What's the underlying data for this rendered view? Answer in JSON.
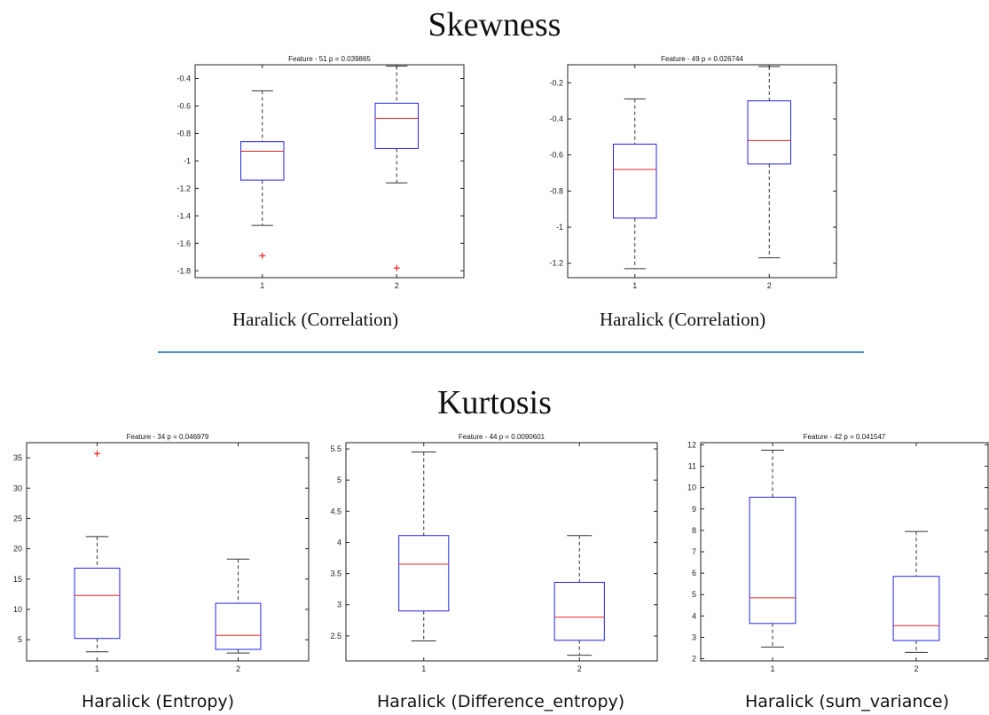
{
  "sections": {
    "skewness_title": "Skewness",
    "kurtosis_title": "Kurtosis"
  },
  "colors": {
    "box": "#2222ee",
    "median": "#ee2222",
    "outlier": "#ee2222",
    "whisker": "#333333",
    "divider": "#4a90d9"
  },
  "chart_data": [
    {
      "type": "boxplot",
      "title": "Feature - 51 p = 0.039865",
      "caption": "Haralick (Correlation)",
      "categories": [
        "1",
        "2"
      ],
      "ylim": [
        -1.85,
        -0.3
      ],
      "yticks": [
        -0.4,
        -0.6,
        -0.8,
        -1,
        -1.2,
        -1.4,
        -1.6,
        -1.8
      ],
      "boxes": [
        {
          "category": "1",
          "whisker_low": -1.47,
          "q1": -1.14,
          "median": -0.93,
          "q3": -0.86,
          "whisker_high": -0.49,
          "outliers": [
            -1.69
          ]
        },
        {
          "category": "2",
          "whisker_low": -1.16,
          "q1": -0.91,
          "median": -0.69,
          "q3": -0.58,
          "whisker_high": -0.31,
          "outliers": [
            -1.78
          ]
        }
      ]
    },
    {
      "type": "boxplot",
      "title": "Feature - 49 p = 0.026744",
      "caption": "Haralick (Correlation)",
      "categories": [
        "1",
        "2"
      ],
      "ylim": [
        -1.28,
        -0.1
      ],
      "yticks": [
        -0.2,
        -0.4,
        -0.6,
        -0.8,
        -1,
        -1.2
      ],
      "boxes": [
        {
          "category": "1",
          "whisker_low": -1.23,
          "q1": -0.95,
          "median": -0.68,
          "q3": -0.54,
          "whisker_high": -0.29,
          "outliers": []
        },
        {
          "category": "2",
          "whisker_low": -1.17,
          "q1": -0.65,
          "median": -0.52,
          "q3": -0.3,
          "whisker_high": -0.11,
          "outliers": []
        }
      ]
    },
    {
      "type": "boxplot",
      "title": "Feature - 34 p = 0.046979",
      "caption": "Haralick (Entropy)",
      "categories": [
        "1",
        "2"
      ],
      "ylim": [
        1.5,
        37.5
      ],
      "yticks": [
        35,
        30,
        25,
        20,
        15,
        10,
        5
      ],
      "boxes": [
        {
          "category": "1",
          "whisker_low": 3.0,
          "q1": 5.2,
          "median": 12.3,
          "q3": 16.8,
          "whisker_high": 22.0,
          "outliers": [
            35.7
          ]
        },
        {
          "category": "2",
          "whisker_low": 2.8,
          "q1": 3.4,
          "median": 5.7,
          "q3": 11.0,
          "whisker_high": 18.3,
          "outliers": []
        }
      ]
    },
    {
      "type": "boxplot",
      "title": "Feature - 44 p = 0.0090601",
      "caption": "Haralick (Difference_entropy)",
      "categories": [
        "1",
        "2"
      ],
      "ylim": [
        2.1,
        5.6
      ],
      "yticks": [
        5.5,
        5,
        4.5,
        4,
        3.5,
        3,
        2.5
      ],
      "boxes": [
        {
          "category": "1",
          "whisker_low": 2.42,
          "q1": 2.9,
          "median": 3.65,
          "q3": 4.11,
          "whisker_high": 5.45,
          "outliers": []
        },
        {
          "category": "2",
          "whisker_low": 2.19,
          "q1": 2.43,
          "median": 2.8,
          "q3": 3.36,
          "whisker_high": 4.11,
          "outliers": []
        }
      ]
    },
    {
      "type": "boxplot",
      "title": "Feature - 42 p = 0.041547",
      "caption": "Haralick (sum_variance)",
      "categories": [
        "1",
        "2"
      ],
      "ylim": [
        1.9,
        12.1
      ],
      "yticks": [
        12,
        11,
        10,
        9,
        8,
        7,
        6,
        5,
        4,
        3,
        2
      ],
      "boxes": [
        {
          "category": "1",
          "whisker_low": 2.55,
          "q1": 3.65,
          "median": 4.85,
          "q3": 9.55,
          "whisker_high": 11.75,
          "outliers": []
        },
        {
          "category": "2",
          "whisker_low": 2.3,
          "q1": 2.85,
          "median": 3.55,
          "q3": 5.85,
          "whisker_high": 7.95,
          "outliers": []
        }
      ]
    }
  ]
}
